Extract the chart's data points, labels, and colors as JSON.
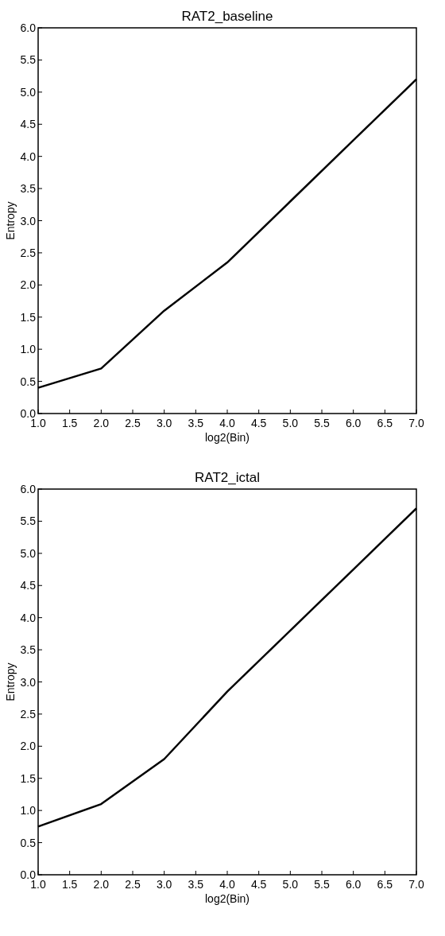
{
  "chart_data": [
    {
      "type": "line",
      "title": "RAT2_baseline",
      "xlabel": "log2(Bin)",
      "ylabel": "Entropy",
      "x": [
        1,
        2,
        3,
        4,
        5,
        6,
        7
      ],
      "series": [
        {
          "color": "#000000",
          "values": [
            0.4,
            0.7,
            1.6,
            2.35,
            3.3,
            4.25,
            5.2
          ]
        }
      ],
      "xlim": [
        1,
        7
      ],
      "ylim": [
        0,
        6
      ],
      "xticks": [
        {
          "value": 1,
          "label": "1.0"
        },
        1.5,
        {
          "value": 2,
          "label": "2.0"
        },
        2.5,
        {
          "value": 3,
          "label": "3.0"
        },
        3.5,
        {
          "value": 4,
          "label": "4.0"
        },
        4.5,
        {
          "value": 5,
          "label": "5.0"
        },
        5.5,
        {
          "value": 6,
          "label": "6.0"
        },
        6.5,
        {
          "value": 7,
          "label": "7.0"
        }
      ],
      "yticks": [
        {
          "value": 0,
          "label": "0.0"
        },
        0.5,
        {
          "value": 1,
          "label": "1.0"
        },
        1.5,
        {
          "value": 2,
          "label": "2.0"
        },
        2.5,
        {
          "value": 3,
          "label": "3.0"
        },
        3.5,
        {
          "value": 4,
          "label": "4.0"
        },
        4.5,
        {
          "value": 5,
          "label": "5.0"
        },
        5.5,
        {
          "value": 6,
          "label": "6.0"
        }
      ]
    },
    {
      "type": "line",
      "title": "RAT2_ictal",
      "xlabel": "log2(Bin)",
      "ylabel": "Entropy",
      "x": [
        1,
        2,
        3,
        4,
        5,
        6,
        7
      ],
      "series": [
        {
          "color": "#000000",
          "values": [
            0.75,
            1.1,
            1.8,
            2.85,
            3.8,
            4.75,
            5.7
          ]
        }
      ],
      "xlim": [
        1,
        7
      ],
      "ylim": [
        0,
        6
      ],
      "xticks": [
        {
          "value": 1,
          "label": "1.0"
        },
        1.5,
        {
          "value": 2,
          "label": "2.0"
        },
        2.5,
        {
          "value": 3,
          "label": "3.0"
        },
        3.5,
        {
          "value": 4,
          "label": "4.0"
        },
        4.5,
        {
          "value": 5,
          "label": "5.0"
        },
        5.5,
        {
          "value": 6,
          "label": "6.0"
        },
        6.5,
        {
          "value": 7,
          "label": "7.0"
        }
      ],
      "yticks": [
        {
          "value": 0,
          "label": "0.0"
        },
        0.5,
        {
          "value": 1,
          "label": "1.0"
        },
        1.5,
        {
          "value": 2,
          "label": "2.0"
        },
        2.5,
        {
          "value": 3,
          "label": "3.0"
        },
        3.5,
        {
          "value": 4,
          "label": "4.0"
        },
        4.5,
        {
          "value": 5,
          "label": "5.0"
        },
        5.5,
        {
          "value": 6,
          "label": "6.0"
        }
      ]
    }
  ]
}
